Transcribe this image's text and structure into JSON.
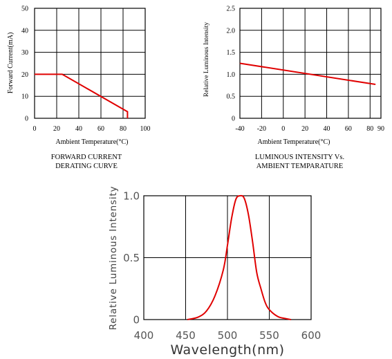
{
  "chart_data": [
    {
      "type": "line",
      "ylabel": "Forward Current(mA)",
      "xlabel": "Ambient Temperature(°C)",
      "caption": [
        "FORWARD CURRENT",
        "DERATING CURVE"
      ],
      "xlim": [
        0,
        100
      ],
      "ylim": [
        0,
        50
      ],
      "xticks": [
        "0",
        "20",
        "40",
        "60",
        "80",
        "100"
      ],
      "yticks": [
        "0",
        "10",
        "20",
        "30",
        "40",
        "50"
      ],
      "grid": true,
      "series": [
        {
          "x": [
            0,
            25,
            84,
            84
          ],
          "y": [
            20,
            20,
            3,
            0
          ]
        }
      ]
    },
    {
      "type": "line",
      "ylabel": "Relative Luminous Intensity",
      "xlabel": "Ambient Temperature(°C)",
      "caption": [
        "LUMINOUS INTENSITY Vs.",
        "AMBIENT TEMPARATURE"
      ],
      "xlim": [
        -40,
        90
      ],
      "ylim": [
        0,
        2.5
      ],
      "xticks": [
        "-40",
        "-20",
        "0",
        "20",
        "40",
        "60",
        "80",
        "90"
      ],
      "yticks": [
        "0",
        "0.5",
        "1.0",
        "1.5",
        "2.0",
        "2.5"
      ],
      "grid": true,
      "series": [
        {
          "x": [
            -40,
            85
          ],
          "y": [
            1.25,
            0.77
          ]
        }
      ]
    },
    {
      "type": "line",
      "ylabel": "Relative Luminous Intensity",
      "xlabel": "Wavelength(nm)",
      "xlim": [
        400,
        600
      ],
      "ylim": [
        0,
        1.0
      ],
      "xticks": [
        "400",
        "450",
        "500",
        "550",
        "600"
      ],
      "yticks": [
        "0",
        "0.5",
        "1.0"
      ],
      "grid": true,
      "series": [
        {
          "x": [
            452,
            465,
            475,
            485,
            495,
            500,
            505,
            510,
            515,
            520,
            525,
            530,
            535,
            540,
            545,
            550,
            560,
            568,
            576
          ],
          "y": [
            0,
            0.02,
            0.07,
            0.19,
            0.4,
            0.6,
            0.82,
            0.97,
            1.0,
            0.98,
            0.85,
            0.63,
            0.38,
            0.25,
            0.14,
            0.08,
            0.025,
            0.01,
            0
          ]
        }
      ]
    }
  ],
  "colors": {
    "curve": "#e00000",
    "axis": "#000000",
    "grid": "#000000",
    "text": "#000000"
  }
}
